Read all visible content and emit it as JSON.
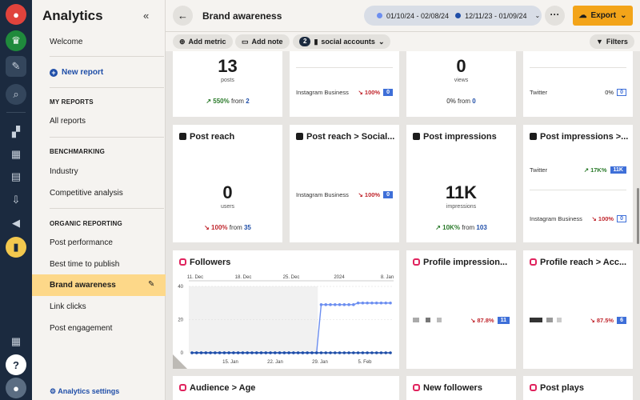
{
  "nav": {
    "title": "Analytics",
    "welcome": "Welcome",
    "new_report": "New report",
    "sections": {
      "my_reports": "MY REPORTS",
      "benchmarking": "BENCHMARKING",
      "organic": "ORGANIC REPORTING"
    },
    "items": {
      "all_reports": "All reports",
      "industry": "Industry",
      "competitive": "Competitive analysis",
      "post_performance": "Post performance",
      "best_time": "Best time to publish",
      "brand_awareness": "Brand awareness",
      "link_clicks": "Link clicks",
      "post_engagement": "Post engagement"
    },
    "settings": "Analytics settings"
  },
  "header": {
    "title": "Brand awareness",
    "date_range_1": "01/10/24 - 02/08/24",
    "date_range_2": "12/11/23 - 01/09/24",
    "export": "Export",
    "colors": {
      "range1": "#6c8ef0",
      "range2": "#1f4ea8",
      "accent": "#f3a419"
    }
  },
  "toolbar": {
    "add_metric": "Add metric",
    "add_note": "Add note",
    "accounts_count": "2",
    "accounts_label": "social accounts",
    "filters": "Filters"
  },
  "cards": {
    "posts": {
      "value": "13",
      "unit": "posts",
      "change": "550%",
      "from_word": "from",
      "from_value": "2"
    },
    "ig_business_top": {
      "label": "Instagram Business",
      "change": "100%",
      "badge": "0"
    },
    "views": {
      "value": "0",
      "unit": "views",
      "change": "0%",
      "from_word": "from",
      "from_value": "0"
    },
    "twitter_top": {
      "label": "Twitter",
      "change": "0%",
      "badge": "0"
    },
    "post_reach": {
      "title": "Post reach",
      "value": "0",
      "unit": "users",
      "change": "100%",
      "from_word": "from",
      "from_value": "35"
    },
    "post_reach_social": {
      "title": "Post reach > Social...",
      "label": "Instagram Business",
      "change": "100%",
      "badge": "0"
    },
    "post_impressions": {
      "title": "Post impressions",
      "value": "11K",
      "unit": "impressions",
      "change": "10K%",
      "from_word": "from",
      "from_value": "103"
    },
    "post_impressions_split": {
      "title": "Post impressions >...",
      "row1_label": "Twitter",
      "row1_change": "17K%",
      "row1_badge": "11K",
      "row2_label": "Instagram Business",
      "row2_change": "100%",
      "row2_badge": "0"
    },
    "followers": {
      "title": "Followers"
    },
    "profile_impressions": {
      "title": "Profile impression...",
      "change": "87.8%",
      "badge": "11"
    },
    "profile_reach": {
      "title": "Profile reach > Acc...",
      "change": "87.5%",
      "badge": "6"
    },
    "audience_age": {
      "title": "Audience > Age"
    },
    "new_followers": {
      "title": "New followers"
    },
    "post_plays": {
      "title": "Post plays"
    }
  },
  "chart_data": {
    "type": "line",
    "title": "Followers",
    "x_top_ticks": [
      "11. Dec",
      "18. Dec",
      "25. Dec",
      "2024",
      "8. Jan"
    ],
    "x_bottom_ticks": [
      "15. Jan",
      "22. Jan",
      "29. Jan",
      "5. Feb"
    ],
    "y_ticks": [
      "0",
      "20",
      "40"
    ],
    "ylim": [
      0,
      40
    ],
    "series": [
      {
        "color": "#6c8ef0",
        "values": [
          0,
          0,
          0,
          0,
          0,
          0,
          0,
          0,
          0,
          0,
          0,
          0,
          0,
          0,
          0,
          0,
          0,
          0,
          0,
          0,
          0,
          0,
          0,
          0,
          0,
          0,
          0,
          0,
          29,
          29,
          29,
          29,
          29,
          29,
          29,
          29,
          30,
          30,
          30,
          30,
          30,
          30,
          30,
          30
        ]
      },
      {
        "color": "#1f4ea8",
        "values": [
          0,
          0,
          0,
          0,
          0,
          0,
          0,
          0,
          0,
          0,
          0,
          0,
          0,
          0,
          0,
          0,
          0,
          0,
          0,
          0,
          0,
          0,
          0,
          0,
          0,
          0,
          0,
          0,
          0,
          0,
          0,
          0,
          0,
          0,
          0,
          0,
          0,
          0,
          0,
          0,
          0,
          0,
          0,
          0
        ]
      }
    ]
  }
}
